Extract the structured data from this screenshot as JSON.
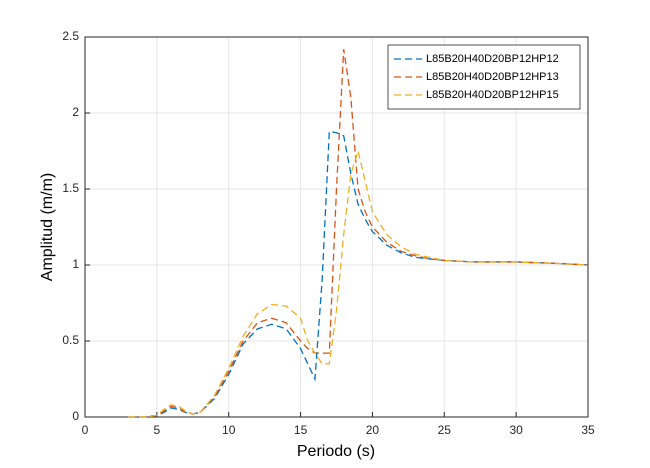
{
  "chart_data": {
    "type": "line",
    "xlabel": "Periodo (s)",
    "ylabel": "Amplitud (m/m)",
    "x": [
      3,
      4,
      5,
      5.5,
      6,
      6.5,
      7,
      7.5,
      8,
      9,
      10,
      11,
      12,
      13,
      14,
      15,
      15.5,
      16,
      16.5,
      17,
      17.5,
      18,
      18.5,
      19,
      19.5,
      20,
      21,
      22,
      23,
      24,
      25,
      27,
      30,
      33,
      35
    ],
    "series": [
      {
        "name": "L85B20H40D20BP12HP12",
        "color": "#0072bd",
        "values": [
          0,
          0,
          0.01,
          0.03,
          0.06,
          0.05,
          0.03,
          0.02,
          0.03,
          0.12,
          0.28,
          0.48,
          0.58,
          0.61,
          0.58,
          0.45,
          0.35,
          0.25,
          0.9,
          1.88,
          1.87,
          1.85,
          1.6,
          1.4,
          1.3,
          1.22,
          1.13,
          1.08,
          1.05,
          1.04,
          1.03,
          1.02,
          1.02,
          1.01,
          1.0
        ]
      },
      {
        "name": "L85B20H40D20BP12HP13",
        "color": "#d95319",
        "values": [
          0,
          0,
          0.01,
          0.04,
          0.07,
          0.06,
          0.03,
          0.02,
          0.03,
          0.13,
          0.3,
          0.5,
          0.62,
          0.65,
          0.62,
          0.5,
          0.45,
          0.42,
          0.42,
          0.42,
          1.5,
          2.42,
          2.1,
          1.5,
          1.35,
          1.25,
          1.15,
          1.09,
          1.06,
          1.04,
          1.03,
          1.02,
          1.02,
          1.01,
          1.0
        ]
      },
      {
        "name": "L85B20H40D20BP12HP15",
        "color": "#edb120",
        "values": [
          0,
          0,
          0.01,
          0.05,
          0.08,
          0.07,
          0.04,
          0.02,
          0.03,
          0.14,
          0.32,
          0.53,
          0.68,
          0.74,
          0.73,
          0.65,
          0.5,
          0.42,
          0.35,
          0.35,
          0.7,
          1.2,
          1.6,
          1.75,
          1.55,
          1.35,
          1.2,
          1.12,
          1.07,
          1.05,
          1.03,
          1.02,
          1.02,
          1.01,
          1.0
        ]
      }
    ],
    "xlim": [
      0,
      35
    ],
    "xticks": [
      0,
      5,
      10,
      15,
      20,
      25,
      30,
      35
    ],
    "ylim": [
      0,
      2.5
    ],
    "yticks": [
      0,
      0.5,
      1,
      1.5,
      2,
      2.5
    ],
    "grid": true,
    "legend": "northeast",
    "line_style": "dashed"
  }
}
